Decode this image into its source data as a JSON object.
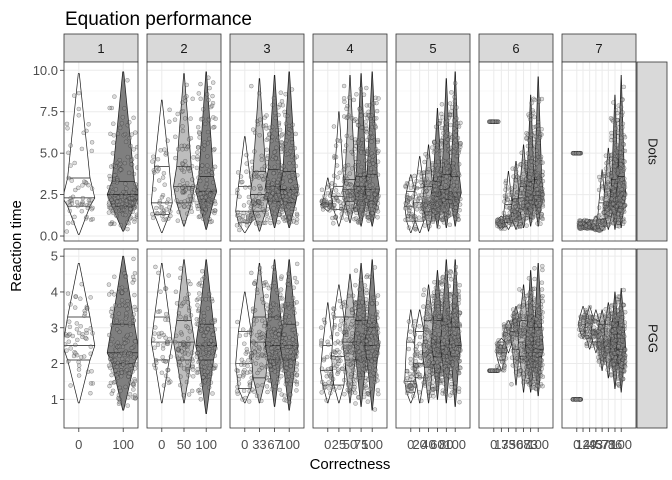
{
  "chart_data": {
    "type": "violin",
    "title": "Equation performance",
    "xlabel": "Correctness",
    "ylabel": "Reaction time",
    "grid": true,
    "column_strips": [
      "1",
      "2",
      "3",
      "4",
      "5",
      "6",
      "7"
    ],
    "row_strips": [
      "Dots",
      "PGG"
    ],
    "rows": [
      {
        "strip": "Dots",
        "ylim": [
          -0.3,
          10.5
        ],
        "yticks": [
          0.0,
          2.5,
          5.0,
          7.5,
          10.0
        ],
        "ytick_labels": [
          "0.0",
          "2.5",
          "5.0",
          "7.5",
          "10.0"
        ]
      },
      {
        "strip": "PGG",
        "ylim": [
          0.2,
          5.2
        ],
        "yticks": [
          1,
          2,
          3,
          4,
          5
        ],
        "ytick_labels": [
          "1",
          "2",
          "3",
          "4",
          "5"
        ]
      }
    ],
    "panels": [
      {
        "strip": "1",
        "x_tick_labels": [
          "0",
          "100"
        ],
        "categories": [
          0,
          100
        ],
        "dots": [
          {
            "median": 2.3,
            "q1": 1.8,
            "q3": 3.5,
            "min": 0.1,
            "max": 9.8,
            "fill": "white"
          },
          {
            "median": 2.5,
            "q1": 1.8,
            "q3": 3.3,
            "min": 0.3,
            "max": 9.9,
            "fill": "gray"
          }
        ],
        "pgg": [
          {
            "median": 2.5,
            "q1": 2.1,
            "q3": 3.3,
            "min": 0.9,
            "max": 4.8,
            "fill": "white"
          },
          {
            "median": 2.3,
            "q1": 2.0,
            "q3": 3.1,
            "min": 0.7,
            "max": 5.0,
            "fill": "gray"
          }
        ]
      },
      {
        "strip": "2",
        "x_tick_labels": [
          "0",
          "50",
          "100"
        ],
        "categories": [
          0,
          50,
          100
        ],
        "dots": [
          {
            "median": 2.0,
            "q1": 1.3,
            "q3": 4.2,
            "min": 0.2,
            "max": 8.2,
            "fill": "white"
          },
          {
            "median": 3.0,
            "q1": 2.0,
            "q3": 4.2,
            "min": 0.6,
            "max": 9.8,
            "fill": "lightgray"
          },
          {
            "median": 2.7,
            "q1": 2.1,
            "q3": 3.6,
            "min": 0.4,
            "max": 9.9,
            "fill": "gray"
          }
        ],
        "pgg": [
          {
            "median": 2.6,
            "q1": 2.1,
            "q3": 3.3,
            "min": 0.9,
            "max": 4.8,
            "fill": "white"
          },
          {
            "median": 2.6,
            "q1": 2.1,
            "q3": 3.2,
            "min": 0.9,
            "max": 4.9,
            "fill": "lightgray"
          },
          {
            "median": 2.5,
            "q1": 2.1,
            "q3": 3.1,
            "min": 0.6,
            "max": 4.9,
            "fill": "gray"
          }
        ]
      },
      {
        "strip": "3",
        "x_tick_labels": [
          "0",
          "33",
          "67",
          "100"
        ],
        "categories": [
          0,
          33,
          67,
          100
        ],
        "dots": [
          {
            "median": 1.5,
            "q1": 0.8,
            "q3": 3.0,
            "min": 0.2,
            "max": 6.0,
            "fill": "white"
          },
          {
            "median": 2.5,
            "q1": 1.5,
            "q3": 3.9,
            "min": 0.3,
            "max": 9.5,
            "fill": "lightgray"
          },
          {
            "median": 3.0,
            "q1": 2.1,
            "q3": 4.0,
            "min": 0.5,
            "max": 9.7,
            "fill": "gray"
          },
          {
            "median": 2.8,
            "q1": 2.0,
            "q3": 3.9,
            "min": 0.5,
            "max": 9.9,
            "fill": "gray"
          }
        ],
        "pgg": [
          {
            "median": 2.0,
            "q1": 1.3,
            "q3": 2.9,
            "min": 0.9,
            "max": 4.0,
            "fill": "white"
          },
          {
            "median": 2.6,
            "q1": 1.6,
            "q3": 3.3,
            "min": 0.9,
            "max": 4.8,
            "fill": "lightgray"
          },
          {
            "median": 2.5,
            "q1": 2.1,
            "q3": 3.3,
            "min": 0.8,
            "max": 4.9,
            "fill": "gray"
          },
          {
            "median": 2.5,
            "q1": 2.1,
            "q3": 3.1,
            "min": 0.7,
            "max": 4.9,
            "fill": "gray"
          }
        ]
      },
      {
        "strip": "4",
        "x_tick_labels": [
          "0",
          "25",
          "50",
          "75",
          "100"
        ],
        "categories": [
          0,
          25,
          50,
          75,
          100
        ],
        "dots": [
          {
            "median": 1.9,
            "q1": 1.8,
            "q3": 2.0,
            "min": 1.5,
            "max": 3.5,
            "fill": "white"
          },
          {
            "median": 2.4,
            "q1": 1.6,
            "q3": 3.0,
            "min": 0.6,
            "max": 7.5,
            "fill": "white"
          },
          {
            "median": 2.8,
            "q1": 2.1,
            "q3": 3.4,
            "min": 0.8,
            "max": 9.7,
            "fill": "lightgray"
          },
          {
            "median": 3.0,
            "q1": 2.1,
            "q3": 3.6,
            "min": 0.6,
            "max": 9.8,
            "fill": "gray"
          },
          {
            "median": 2.8,
            "q1": 2.1,
            "q3": 3.7,
            "min": 0.6,
            "max": 9.9,
            "fill": "gray"
          }
        ],
        "pgg": [
          {
            "median": 1.8,
            "q1": 1.4,
            "q3": 2.5,
            "min": 0.9,
            "max": 3.7,
            "fill": "white"
          },
          {
            "median": 2.2,
            "q1": 1.4,
            "q3": 3.3,
            "min": 0.9,
            "max": 4.2,
            "fill": "white"
          },
          {
            "median": 2.6,
            "q1": 2.1,
            "q3": 3.3,
            "min": 0.9,
            "max": 4.5,
            "fill": "lightgray"
          },
          {
            "median": 2.6,
            "q1": 2.1,
            "q3": 3.2,
            "min": 0.8,
            "max": 4.8,
            "fill": "gray"
          },
          {
            "median": 2.5,
            "q1": 2.1,
            "q3": 3.0,
            "min": 0.7,
            "max": 4.9,
            "fill": "gray"
          }
        ]
      },
      {
        "strip": "5",
        "x_tick_labels": [
          "0",
          "20",
          "40",
          "60",
          "80",
          "100"
        ],
        "categories": [
          0,
          20,
          40,
          60,
          80,
          100
        ],
        "dots": [
          {
            "median": 1.8,
            "q1": 0.9,
            "q3": 2.7,
            "min": 0.2,
            "max": 3.7,
            "fill": "white"
          },
          {
            "median": 2.0,
            "q1": 0.9,
            "q3": 2.9,
            "min": 0.2,
            "max": 4.8,
            "fill": "white"
          },
          {
            "median": 2.0,
            "q1": 1.5,
            "q3": 3.0,
            "min": 0.3,
            "max": 5.5,
            "fill": "lightgray"
          },
          {
            "median": 2.6,
            "q1": 2.0,
            "q3": 3.3,
            "min": 0.5,
            "max": 7.7,
            "fill": "gray"
          },
          {
            "median": 2.8,
            "q1": 2.2,
            "q3": 3.7,
            "min": 0.5,
            "max": 9.5,
            "fill": "gray"
          },
          {
            "median": 2.6,
            "q1": 2.2,
            "q3": 3.6,
            "min": 0.6,
            "max": 9.9,
            "fill": "gray"
          }
        ],
        "pgg": [
          {
            "median": 1.5,
            "q1": 1.2,
            "q3": 2.6,
            "min": 0.9,
            "max": 3.5,
            "fill": "white"
          },
          {
            "median": 2.0,
            "q1": 1.6,
            "q3": 2.9,
            "min": 0.9,
            "max": 3.5,
            "fill": "white"
          },
          {
            "median": 2.3,
            "q1": 1.9,
            "q3": 3.2,
            "min": 0.9,
            "max": 4.2,
            "fill": "lightgray"
          },
          {
            "median": 2.6,
            "q1": 2.2,
            "q3": 3.2,
            "min": 1.0,
            "max": 4.6,
            "fill": "gray"
          },
          {
            "median": 2.5,
            "q1": 2.2,
            "q3": 3.1,
            "min": 0.9,
            "max": 4.9,
            "fill": "gray"
          },
          {
            "median": 2.5,
            "q1": 2.2,
            "q3": 3.0,
            "min": 0.8,
            "max": 4.9,
            "fill": "gray"
          }
        ]
      },
      {
        "strip": "6",
        "x_tick_labels": [
          "0",
          "17",
          "33",
          "50",
          "67",
          "83",
          "100"
        ],
        "categories": [
          0,
          17,
          33,
          50,
          67,
          83,
          100
        ],
        "dots": [
          {
            "median": 6.9,
            "q1": 6.9,
            "q3": 6.9,
            "min": 6.9,
            "max": 6.9,
            "fill": "white"
          },
          {
            "median": 0.8,
            "q1": 0.6,
            "q3": 1.0,
            "min": 0.4,
            "max": 1.2,
            "fill": "white"
          },
          {
            "median": 1.2,
            "q1": 0.8,
            "q3": 1.9,
            "min": 0.4,
            "max": 3.9,
            "fill": "white"
          },
          {
            "median": 1.4,
            "q1": 1.0,
            "q3": 2.2,
            "min": 0.4,
            "max": 4.5,
            "fill": "lightgray"
          },
          {
            "median": 2.3,
            "q1": 1.6,
            "q3": 3.0,
            "min": 0.5,
            "max": 5.5,
            "fill": "lightgray"
          },
          {
            "median": 2.5,
            "q1": 2.0,
            "q3": 3.3,
            "min": 0.6,
            "max": 8.5,
            "fill": "gray"
          },
          {
            "median": 2.6,
            "q1": 2.2,
            "q3": 3.4,
            "min": 0.6,
            "max": 9.6,
            "fill": "gray"
          }
        ],
        "pgg": [
          {
            "median": 1.8,
            "q1": 1.8,
            "q3": 1.8,
            "min": 1.8,
            "max": 1.8,
            "fill": "white"
          },
          {
            "median": 2.3,
            "q1": 2.1,
            "q3": 2.6,
            "min": 1.8,
            "max": 2.7,
            "fill": "white"
          },
          {
            "median": 2.8,
            "q1": 2.6,
            "q3": 3.0,
            "min": 2.3,
            "max": 3.2,
            "fill": "white"
          },
          {
            "median": 2.9,
            "q1": 2.4,
            "q3": 3.2,
            "min": 1.4,
            "max": 3.6,
            "fill": "lightgray"
          },
          {
            "median": 2.6,
            "q1": 2.2,
            "q3": 3.2,
            "min": 1.2,
            "max": 4.2,
            "fill": "lightgray"
          },
          {
            "median": 2.5,
            "q1": 2.1,
            "q3": 3.0,
            "min": 1.2,
            "max": 4.6,
            "fill": "gray"
          },
          {
            "median": 2.4,
            "q1": 2.2,
            "q3": 3.0,
            "min": 1.1,
            "max": 4.8,
            "fill": "gray"
          }
        ]
      },
      {
        "strip": "7",
        "x_tick_labels": [
          "0",
          "14",
          "29",
          "43",
          "57",
          "71",
          "86",
          "100"
        ],
        "categories": [
          0,
          14,
          29,
          43,
          57,
          71,
          86,
          100
        ],
        "dots": [
          {
            "median": 5.0,
            "q1": 5.0,
            "q3": 5.0,
            "min": 5.0,
            "max": 5.0,
            "fill": "white"
          },
          {
            "median": 0.6,
            "q1": 0.5,
            "q3": 0.8,
            "min": 0.4,
            "max": 1.0,
            "fill": "white"
          },
          {
            "median": 0.6,
            "q1": 0.5,
            "q3": 0.8,
            "min": 0.4,
            "max": 1.0,
            "fill": "white"
          },
          {
            "median": 0.6,
            "q1": 0.5,
            "q3": 0.9,
            "min": 0.3,
            "max": 1.2,
            "fill": "white"
          },
          {
            "median": 1.0,
            "q1": 0.6,
            "q3": 2.0,
            "min": 0.3,
            "max": 4.0,
            "fill": "white"
          },
          {
            "median": 2.0,
            "q1": 1.2,
            "q3": 3.2,
            "min": 0.4,
            "max": 5.3,
            "fill": "lightgray"
          },
          {
            "median": 2.5,
            "q1": 1.8,
            "q3": 3.4,
            "min": 0.4,
            "max": 8.5,
            "fill": "gray"
          },
          {
            "median": 2.6,
            "q1": 2.0,
            "q3": 3.6,
            "min": 0.5,
            "max": 9.7,
            "fill": "gray"
          }
        ],
        "pgg": [
          {
            "median": 1.0,
            "q1": 1.0,
            "q3": 1.0,
            "min": 1.0,
            "max": 1.0,
            "fill": "white"
          },
          {
            "median": 3.1,
            "q1": 2.9,
            "q3": 3.3,
            "min": 2.7,
            "max": 3.6,
            "fill": "white"
          },
          {
            "median": 3.0,
            "q1": 2.7,
            "q3": 3.3,
            "min": 2.4,
            "max": 3.6,
            "fill": "white"
          },
          {
            "median": 2.9,
            "q1": 2.6,
            "q3": 3.2,
            "min": 2.3,
            "max": 3.5,
            "fill": "white"
          },
          {
            "median": 2.6,
            "q1": 2.4,
            "q3": 3.1,
            "min": 1.8,
            "max": 3.5,
            "fill": "lightgray"
          },
          {
            "median": 2.6,
            "q1": 2.3,
            "q3": 3.1,
            "min": 1.6,
            "max": 3.7,
            "fill": "lightgray"
          },
          {
            "median": 2.5,
            "q1": 2.1,
            "q3": 3.0,
            "min": 1.3,
            "max": 4.0,
            "fill": "gray"
          },
          {
            "median": 2.4,
            "q1": 2.1,
            "q3": 3.0,
            "min": 1.2,
            "max": 4.1,
            "fill": "gray"
          }
        ]
      }
    ]
  },
  "colors": {
    "strip_fill": "#d9d9d9",
    "panel_border": "#333333",
    "grid_major": "#ebebeb",
    "grid_minor": "#f5f5f5",
    "violin_white": "#ffffff",
    "violin_lightgray": "#bdbdbd",
    "violin_gray": "#7f7f7f",
    "point_fill": "#999999",
    "point_stroke": "#1a1a1a"
  }
}
